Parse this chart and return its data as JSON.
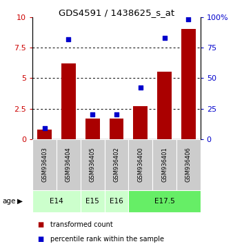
{
  "title": "GDS4591 / 1438625_s_at",
  "samples": [
    "GSM936403",
    "GSM936404",
    "GSM936405",
    "GSM936402",
    "GSM936400",
    "GSM936401",
    "GSM936406"
  ],
  "transformed_count": [
    0.8,
    6.2,
    1.7,
    1.7,
    2.7,
    5.5,
    9.0
  ],
  "percentile_rank": [
    9,
    82,
    20,
    20,
    42,
    83,
    98
  ],
  "age_groups": [
    {
      "label": "E14",
      "span": [
        0,
        2
      ],
      "color": "#ccffcc"
    },
    {
      "label": "E15",
      "span": [
        2,
        3
      ],
      "color": "#ccffcc"
    },
    {
      "label": "E16",
      "span": [
        3,
        4
      ],
      "color": "#ccffcc"
    },
    {
      "label": "E17.5",
      "span": [
        4,
        7
      ],
      "color": "#66ee66"
    }
  ],
  "bar_color": "#aa0000",
  "dot_color": "#0000cc",
  "left_ylim": [
    0,
    10
  ],
  "right_ylim": [
    0,
    100
  ],
  "left_yticks": [
    0,
    2.5,
    5,
    7.5,
    10
  ],
  "right_yticks": [
    0,
    25,
    50,
    75,
    100
  ],
  "left_tick_color": "#cc0000",
  "right_tick_color": "#0000cc",
  "sample_bg_color": "#cccccc",
  "legend_red_label": "transformed count",
  "legend_blue_label": "percentile rank within the sample",
  "age_label": "age"
}
